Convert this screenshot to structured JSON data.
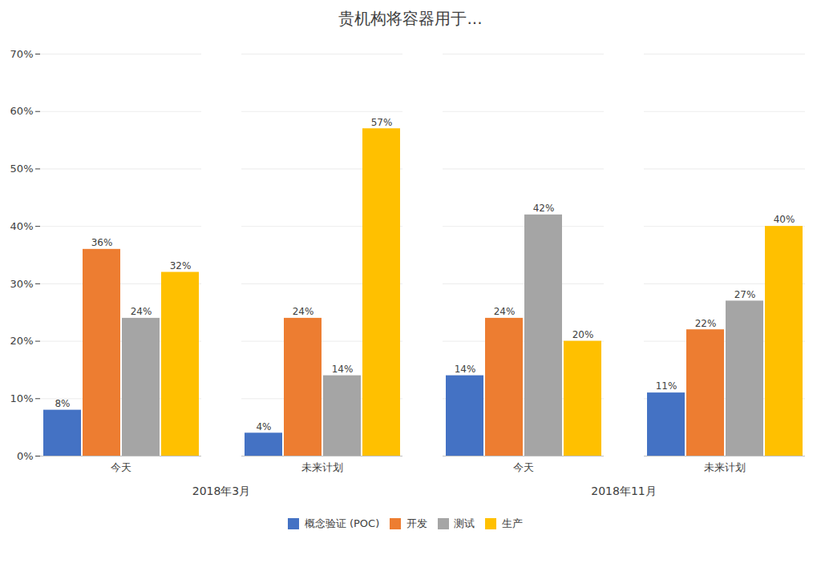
{
  "chart_data": {
    "type": "bar",
    "title": "贵机构将容器用于...",
    "categories": [
      "今天",
      "未来计划",
      "今天",
      "未来计划"
    ],
    "annotations": [
      "2018年3月",
      "2018年11月"
    ],
    "series": [
      {
        "name": "概念验证 (POC)",
        "color": "#4472c4",
        "values": [
          8,
          4,
          14,
          11
        ],
        "value_labels": [
          "8%",
          "4%",
          "14%",
          "11%"
        ]
      },
      {
        "name": "开发",
        "color": "#ed7d31",
        "values": [
          36,
          24,
          24,
          22
        ],
        "value_labels": [
          "36%",
          "24%",
          "24%",
          "22%"
        ]
      },
      {
        "name": "测试",
        "color": "#a5a5a5",
        "values": [
          24,
          14,
          42,
          27
        ],
        "value_labels": [
          "24%",
          "14%",
          "42%",
          "27%"
        ]
      },
      {
        "name": "生产",
        "color": "#ffc000",
        "values": [
          32,
          57,
          20,
          40
        ],
        "value_labels": [
          "32%",
          "57%",
          "20%",
          "40%"
        ]
      }
    ],
    "ylim": [
      0,
      70
    ],
    "yticks": [
      {
        "value": 0,
        "label": "0%"
      },
      {
        "value": 10,
        "label": "10%"
      },
      {
        "value": 20,
        "label": "20%"
      },
      {
        "value": 30,
        "label": "30%"
      },
      {
        "value": 40,
        "label": "40%"
      },
      {
        "value": 50,
        "label": "50%"
      },
      {
        "value": 60,
        "label": "60%"
      },
      {
        "value": 70,
        "label": "70%"
      }
    ],
    "grid": true,
    "data_labels": true,
    "legend": "bottom"
  }
}
